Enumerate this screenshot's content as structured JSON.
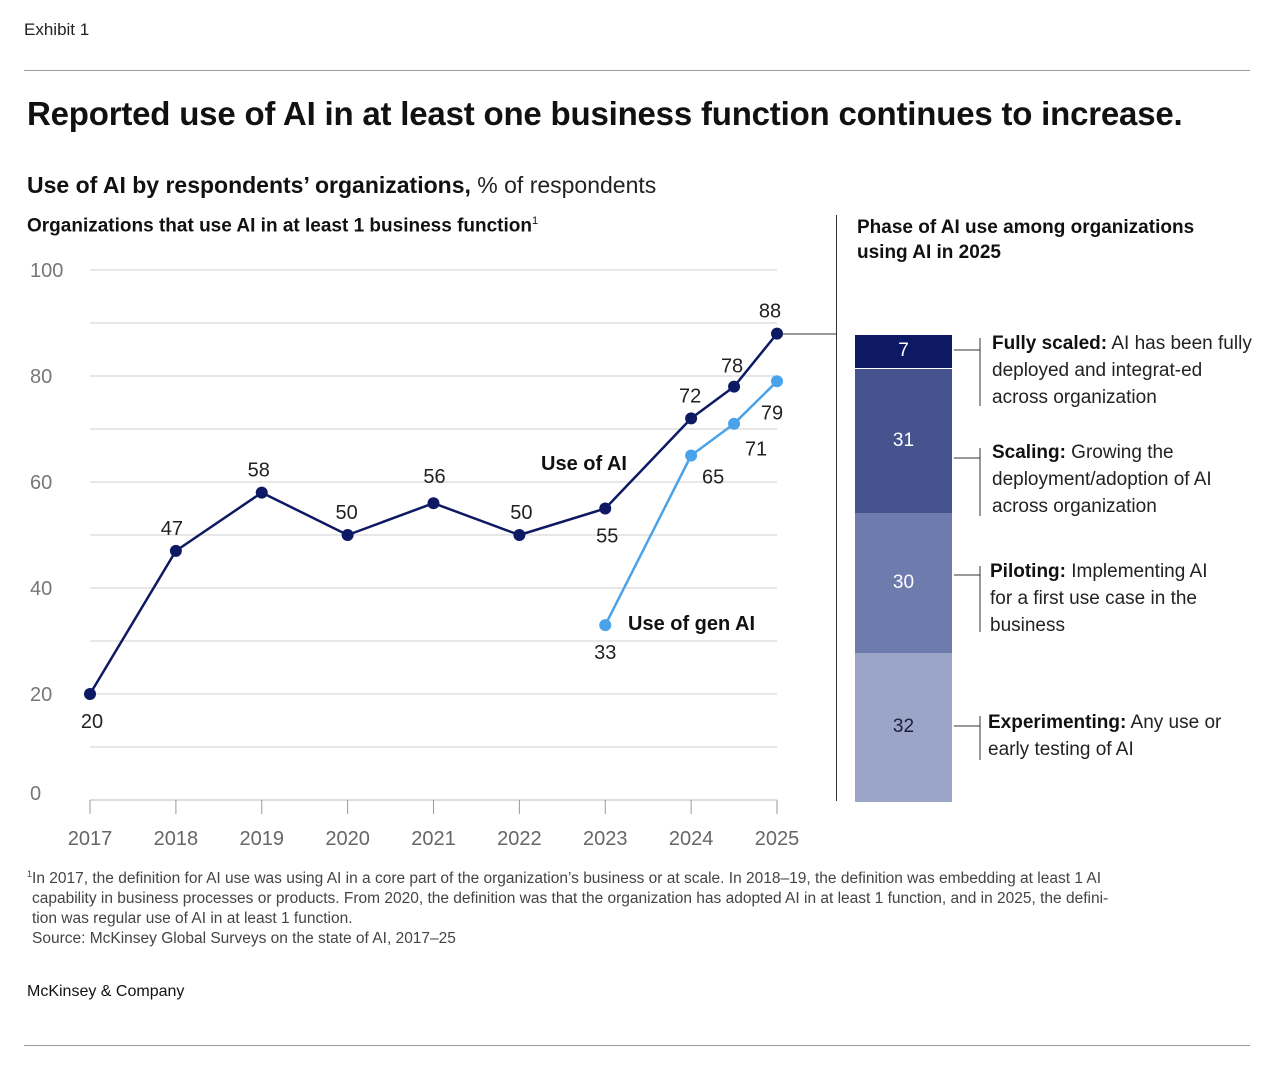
{
  "exhibit": "Exhibit 1",
  "headline": "Reported use of AI in at least one business function continues to increase.",
  "subtitle": {
    "bold": "Use of AI by respondents’ organizations,",
    "unit": " % of respondents"
  },
  "left_title": {
    "text": "Organizations that use AI in at least 1 business function",
    "footnote_mark": "1"
  },
  "right_title": "Phase of AI use among organizations using AI in 2025",
  "chart_data": [
    {
      "type": "line",
      "title": "Organizations that use AI in at least 1 business function",
      "ylim": [
        0,
        100
      ],
      "yticks": [
        0,
        20,
        40,
        60,
        80,
        100
      ],
      "xlim": [
        2017,
        2025
      ],
      "xticks": [
        "2017",
        "2018",
        "2019",
        "2020",
        "2021",
        "2022",
        "2023",
        "2024",
        "2025"
      ],
      "grid": true,
      "series": [
        {
          "name": "Use of AI",
          "color": "#0d1a63",
          "x": [
            2017,
            2018,
            2019,
            2020,
            2021,
            2022,
            2023,
            2024,
            2024.5,
            2025
          ],
          "values": [
            20,
            47,
            58,
            50,
            56,
            50,
            55,
            72,
            78,
            88
          ]
        },
        {
          "name": "Use of gen AI",
          "color": "#4aa3ea",
          "x": [
            2023,
            2024,
            2024.5,
            2025
          ],
          "values": [
            33,
            65,
            71,
            79
          ]
        }
      ]
    },
    {
      "type": "bar",
      "title": "Phase of AI use among organizations using AI in 2025",
      "stacked": true,
      "categories": [
        "Experimenting",
        "Piloting",
        "Scaling",
        "Fully scaled"
      ],
      "values": [
        32,
        30,
        31,
        7
      ],
      "colors": [
        "#9ba5c8",
        "#6e7bad",
        "#45548f",
        "#0d1a63"
      ]
    }
  ],
  "phases": [
    {
      "key": "fully",
      "name": "Fully scaled:",
      "desc": " AI has been fully deployed and integrat-ed across organization"
    },
    {
      "key": "scaling",
      "name": "Scaling:",
      "desc": " Growing the deployment/adoption of AI across organization"
    },
    {
      "key": "piloting",
      "name": "Piloting:",
      "desc": " Implementing AI for a first use case in the business"
    },
    {
      "key": "exp",
      "name": "Experimenting:",
      "desc": " Any use or early testing of AI"
    }
  ],
  "footnote": {
    "mark": "1",
    "line1": "In 2017, the definition for AI use was using AI in a core part of the organization’s business or at scale. In 2018–19, the definition was embedding at least 1 AI",
    "line2": "capability in business processes or products. From 2020, the definition was that the organization has adopted AI in at least 1 function, and in 2025, the defini-",
    "line3": "tion was regular use of AI in at least 1 function.",
    "source": "Source: McKinsey Global Surveys on the state of AI, 2017–25"
  },
  "brand": "McKinsey & Company"
}
